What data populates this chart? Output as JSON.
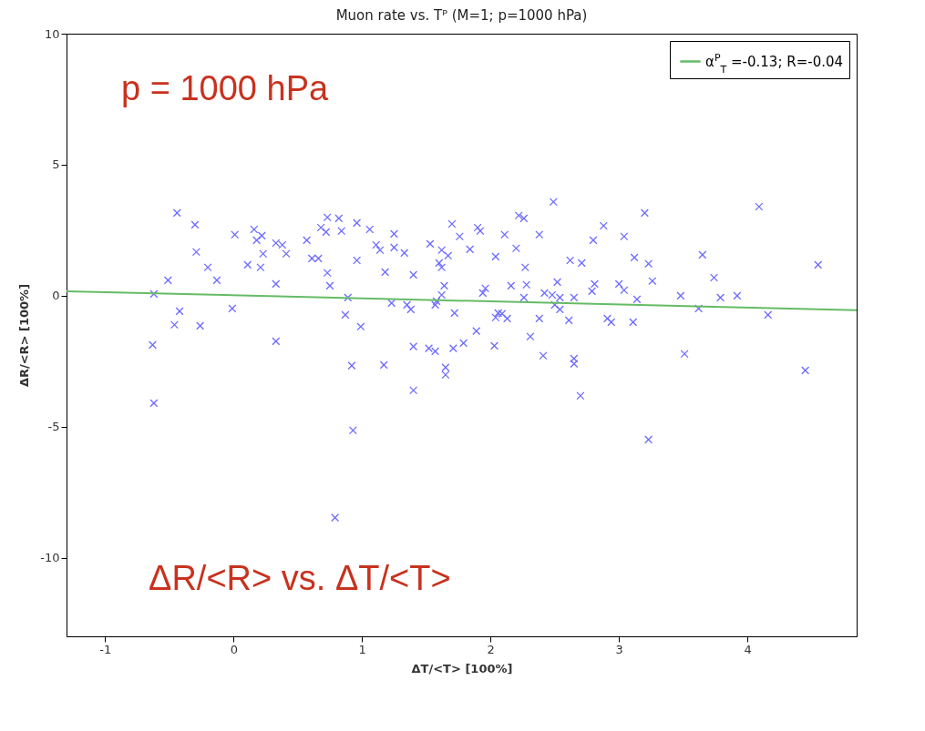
{
  "chart_data": {
    "type": "scatter",
    "title": "Muon rate vs. Tᴾ  (M=1; p=1000 hPa)",
    "xlabel": "ΔT/<T> [100%]",
    "ylabel": "ΔR/<R> [100%]",
    "xlim": [
      -1.3,
      4.85
    ],
    "ylim": [
      -13,
      10
    ],
    "xticks": [
      -1,
      0,
      1,
      2,
      3,
      4
    ],
    "yticks": [
      -10,
      -5,
      0,
      5,
      10
    ],
    "grid": false,
    "legend": "top right",
    "annotations": [
      "p = 1000 hPa",
      "ΔR/<R> vs. ΔT/<T>"
    ],
    "series": [
      {
        "type": "scatter",
        "marker": "cross",
        "color": "#6b6bff",
        "x": [
          -0.63,
          -0.62,
          -0.62,
          -0.51,
          -0.44,
          -0.46,
          -0.42,
          -0.3,
          -0.29,
          -0.26,
          -0.2,
          -0.13,
          -0.01,
          0.01,
          0.11,
          0.16,
          0.22,
          0.18,
          0.33,
          0.38,
          0.41,
          0.23,
          0.21,
          0.33,
          0.33,
          0.57,
          0.61,
          0.66,
          0.73,
          0.75,
          0.73,
          0.82,
          0.68,
          0.72,
          0.84,
          0.96,
          1.06,
          1.11,
          1.14,
          1.25,
          1.25,
          0.96,
          1.18,
          0.89,
          1.23,
          0.87,
          0.99,
          0.92,
          1.17,
          0.93,
          0.79,
          1.4,
          1.65,
          1.65,
          2.49,
          2.22,
          2.26,
          1.7,
          1.9,
          1.92,
          1.76,
          2.11,
          2.38,
          2.88,
          2.8,
          3.04,
          1.33,
          1.53,
          1.62,
          1.67,
          1.6,
          1.62,
          1.84,
          2.04,
          2.2,
          2.27,
          2.62,
          2.71,
          1.4,
          1.64,
          1.62,
          1.96,
          1.94,
          2.16,
          2.28,
          2.52,
          2.42,
          2.48,
          2.54,
          2.65,
          2.81,
          2.79,
          3.0,
          3.04,
          3.12,
          1.35,
          1.38,
          1.57,
          1.58,
          1.72,
          2.06,
          2.09,
          2.04,
          2.13,
          2.26,
          2.5,
          2.54,
          2.61,
          2.38,
          2.91,
          2.94,
          3.11,
          1.89,
          2.31,
          1.79,
          1.71,
          2.03,
          1.4,
          1.52,
          1.57,
          2.41,
          2.65,
          2.65,
          2.7,
          3.23,
          3.2,
          4.09,
          3.65,
          4.55,
          3.74,
          3.26,
          3.14,
          3.23,
          3.48,
          3.62,
          3.79,
          3.92,
          4.16,
          3.51,
          4.45
        ],
        "values": [
          -1.88,
          -4.1,
          0.07,
          0.59,
          3.16,
          -1.11,
          -0.59,
          2.71,
          1.67,
          -1.15,
          1.08,
          0.59,
          -0.49,
          2.33,
          1.18,
          2.53,
          2.29,
          2.12,
          2.01,
          1.94,
          1.6,
          1.6,
          1.08,
          0.45,
          -1.74,
          2.12,
          1.42,
          1.42,
          0.87,
          0.38,
          2.99,
          2.95,
          2.6,
          2.43,
          2.47,
          2.78,
          2.53,
          1.94,
          1.74,
          2.36,
          1.84,
          1.35,
          0.9,
          -0.07,
          -0.28,
          -0.73,
          -1.18,
          -2.67,
          -2.64,
          -5.14,
          -8.47,
          -3.61,
          -2.74,
          -3.02,
          3.58,
          3.06,
          2.95,
          2.74,
          2.6,
          2.47,
          2.26,
          2.33,
          2.33,
          2.67,
          2.12,
          2.26,
          1.63,
          1.98,
          1.74,
          1.53,
          1.25,
          1.08,
          1.77,
          1.49,
          1.81,
          1.08,
          1.35,
          1.25,
          0.8,
          0.38,
          0.03,
          0.28,
          0.1,
          0.38,
          0.42,
          0.52,
          0.1,
          0.03,
          -0.07,
          -0.07,
          0.45,
          0.17,
          0.45,
          0.21,
          1.46,
          -0.35,
          -0.52,
          -0.35,
          -0.21,
          -0.66,
          -0.66,
          -0.69,
          -0.83,
          -0.87,
          -0.07,
          -0.35,
          -0.52,
          -0.94,
          -0.87,
          -0.87,
          -1.01,
          -1.01,
          -1.35,
          -1.56,
          -1.81,
          -2.01,
          -1.91,
          -1.94,
          -2.01,
          -2.12,
          -2.29,
          -2.4,
          -2.6,
          -3.82,
          -5.49,
          3.16,
          3.4,
          1.56,
          1.18,
          0.69,
          0.56,
          -0.14,
          1.22,
          0.0,
          -0.49,
          -0.07,
          0.0,
          -0.73,
          -2.22,
          -2.85
        ]
      },
      {
        "type": "line",
        "marker": "none",
        "name": "α$^{P}$$_{T}$ =-0.13; R=-0.04",
        "color": "#66bb66",
        "x": [
          -1.3,
          4.85
        ],
        "values": [
          0.17,
          -0.55
        ]
      }
    ]
  }
}
